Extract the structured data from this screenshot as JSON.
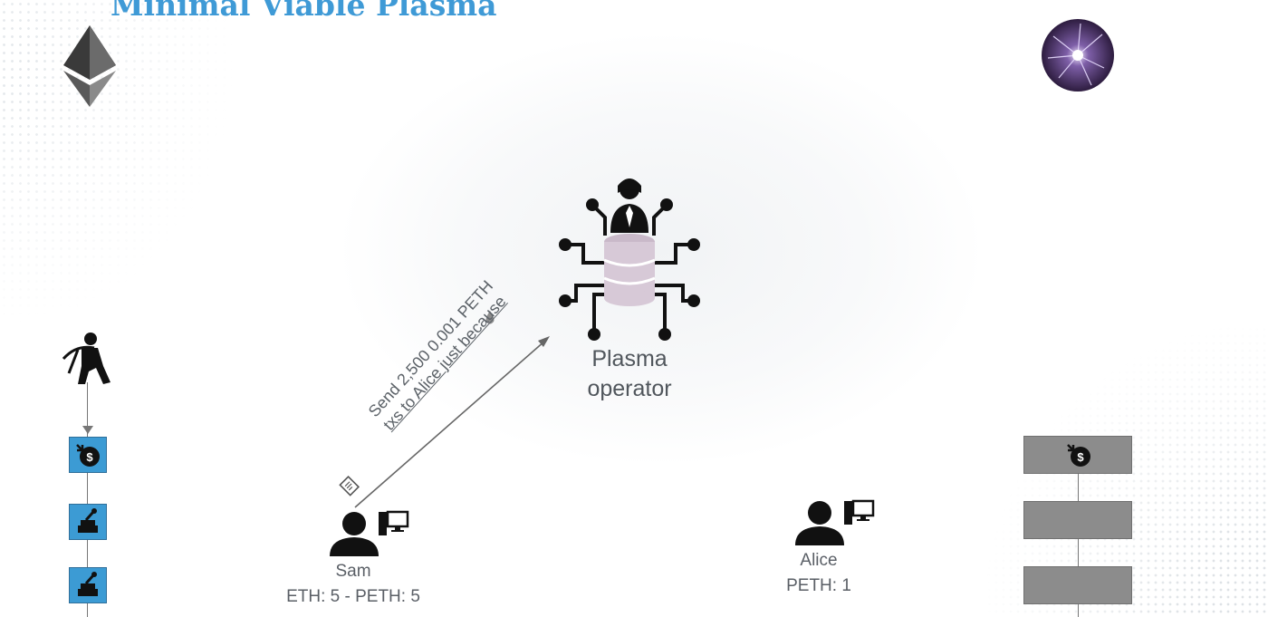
{
  "slide": {
    "title": "Minimal Viable Plasma"
  },
  "operator": {
    "label_line1": "Plasma",
    "label_line2": "operator"
  },
  "transaction": {
    "line1": "Send 2,500 0.001 PETH",
    "line2": "txs to Alice just because"
  },
  "sam": {
    "name": "Sam",
    "balance": "ETH: 5 - PETH: 5"
  },
  "alice": {
    "name": "Alice",
    "balance": "PETH: 1"
  },
  "icons": [
    "ethereum-logo",
    "plasma-ball-logo",
    "miner-icon",
    "operator-person-icon",
    "database-icon",
    "circuit-icon",
    "user-icon",
    "computer-icon",
    "transaction-doc-icon",
    "coin-deposit-icon",
    "smart-contract-icon"
  ],
  "colors": {
    "title": "#3f9ad6",
    "ethereum_block": "#3c9bd4",
    "plasma_block": "#8c8c8c",
    "text": "#5a5f66"
  }
}
